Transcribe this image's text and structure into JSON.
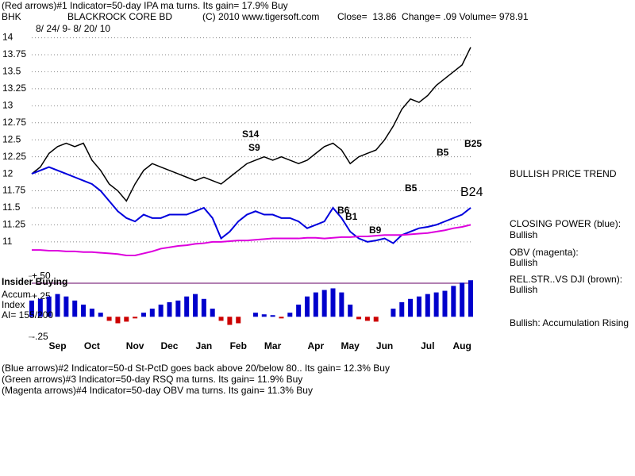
{
  "header": {
    "indicator": "(Red arrows)#1 Indicator=50-day IPA ma turns. Its gain= 17.9% Buy",
    "symbol": "BHK",
    "name": "BLACKROCK CORE BD",
    "copyright": "(C) 2010 www.tigersoft.com",
    "quote": "Close=  13.86  Change= .09 Volume= 978.91",
    "dates": "8/ 24/ 9- 8/ 20/ 10"
  },
  "chart_data": [
    {
      "type": "line",
      "categories": [
        null,
        null,
        null,
        "Sep",
        null,
        null,
        null,
        "Oct",
        null,
        null,
        null,
        null,
        "Nov",
        null,
        null,
        null,
        "Dec",
        null,
        null,
        null,
        "Jan",
        null,
        null,
        null,
        "Feb",
        null,
        null,
        null,
        "Mar",
        null,
        null,
        null,
        null,
        "Apr",
        null,
        null,
        null,
        "May",
        null,
        null,
        null,
        "Jun",
        null,
        null,
        null,
        null,
        "Jul",
        null,
        null,
        null,
        "Aug",
        null
      ],
      "series": [
        {
          "color": "#000000",
          "values": [
            12.0,
            12.1,
            12.3,
            12.4,
            12.45,
            12.4,
            12.45,
            12.2,
            12.05,
            11.85,
            11.75,
            11.6,
            11.85,
            12.05,
            12.15,
            12.1,
            12.05,
            12.0,
            11.95,
            11.9,
            11.95,
            11.9,
            11.85,
            11.95,
            12.05,
            12.15,
            12.2,
            12.25,
            12.2,
            12.25,
            12.2,
            12.15,
            12.2,
            12.3,
            12.4,
            12.45,
            12.35,
            12.15,
            12.25,
            12.3,
            12.35,
            12.5,
            12.7,
            12.95,
            13.1,
            13.05,
            13.15,
            13.3,
            13.4,
            13.5,
            13.6,
            13.86
          ]
        },
        {
          "color": "#0000dd",
          "values": [
            12.0,
            12.05,
            12.1,
            12.05,
            12.0,
            11.95,
            11.9,
            11.85,
            11.75,
            11.6,
            11.45,
            11.35,
            11.3,
            11.4,
            11.35,
            11.35,
            11.4,
            11.4,
            11.4,
            11.45,
            11.5,
            11.35,
            11.05,
            11.15,
            11.3,
            11.4,
            11.45,
            11.4,
            11.4,
            11.35,
            11.35,
            11.3,
            11.2,
            11.25,
            11.3,
            11.5,
            11.35,
            11.15,
            11.05,
            11.0,
            11.02,
            11.05,
            10.98,
            11.1,
            11.15,
            11.2,
            11.22,
            11.25,
            11.3,
            11.35,
            11.4,
            11.5
          ]
        },
        {
          "color": "#dd00dd",
          "values": [
            10.88,
            10.88,
            10.87,
            10.87,
            10.86,
            10.86,
            10.85,
            10.85,
            10.84,
            10.83,
            10.82,
            10.8,
            10.8,
            10.83,
            10.86,
            10.9,
            10.92,
            10.94,
            10.95,
            10.97,
            10.98,
            11.0,
            11.0,
            11.01,
            11.02,
            11.02,
            11.03,
            11.04,
            11.05,
            11.05,
            11.05,
            11.05,
            11.06,
            11.06,
            11.05,
            11.06,
            11.07,
            11.07,
            11.08,
            11.08,
            11.09,
            11.1,
            11.1,
            11.1,
            11.11,
            11.12,
            11.13,
            11.15,
            11.17,
            11.2,
            11.22,
            11.25
          ]
        }
      ],
      "ylim": [
        10.8,
        14.1
      ],
      "yticks": [
        11,
        11.25,
        11.5,
        11.75,
        12,
        12.25,
        12.5,
        12.75,
        13,
        13.25,
        13.5,
        13.75,
        14
      ],
      "grid": true,
      "annotations": [
        "S14",
        "S9",
        "B5",
        "B5",
        "B25",
        "B24",
        "B6",
        "B1",
        "B9"
      ]
    },
    {
      "type": "bar",
      "values": [
        0.2,
        0.22,
        0.25,
        0.28,
        0.25,
        0.2,
        0.15,
        0.1,
        0.05,
        -0.05,
        -0.08,
        -0.06,
        -0.02,
        0.05,
        0.1,
        0.15,
        0.18,
        0.2,
        0.25,
        0.28,
        0.22,
        0.1,
        -0.05,
        -0.1,
        -0.08,
        0.0,
        0.05,
        0.03,
        0.02,
        -0.02,
        0.05,
        0.15,
        0.25,
        0.3,
        0.33,
        0.35,
        0.3,
        0.15,
        -0.03,
        -0.05,
        -0.06,
        0.0,
        0.1,
        0.18,
        0.22,
        0.25,
        0.28,
        0.3,
        0.32,
        0.38,
        0.42,
        0.45
      ],
      "color": "#0000cc",
      "negative_color": "#cc0000",
      "ylim": [
        -0.3,
        0.55
      ],
      "yticks": [
        {
          "value": 0.5,
          "label": "+.50"
        },
        {
          "value": 0.25,
          "label": "+.25"
        },
        {
          "value": -0.25,
          "label": "-.25"
        }
      ],
      "annotations": [
        "Insider Buying",
        "Accum",
        "Index",
        "AI= 155/200"
      ]
    }
  ],
  "side_labels": [
    "BULLISH PRICE TREND",
    "CLOSING POWER (blue):",
    "Bullish",
    "OBV (magenta):",
    "Bullish",
    "REL.STR..VS DJI (brown):",
    "Bullish",
    "Bullish: Accumulation Rising"
  ],
  "notes": [
    "(Blue arrows)#2 Indicator=50-d St-PctD goes back above 20/below 80.. Its gain= 12.3% Buy",
    "(Green arrows)#3 Indicator=50-day RSQ ma turns. Its gain= 11.9% Buy",
    "(Magenta arrows)#4 Indicator=50-day OBV ma turns. Its gain= 11.3% Buy"
  ]
}
